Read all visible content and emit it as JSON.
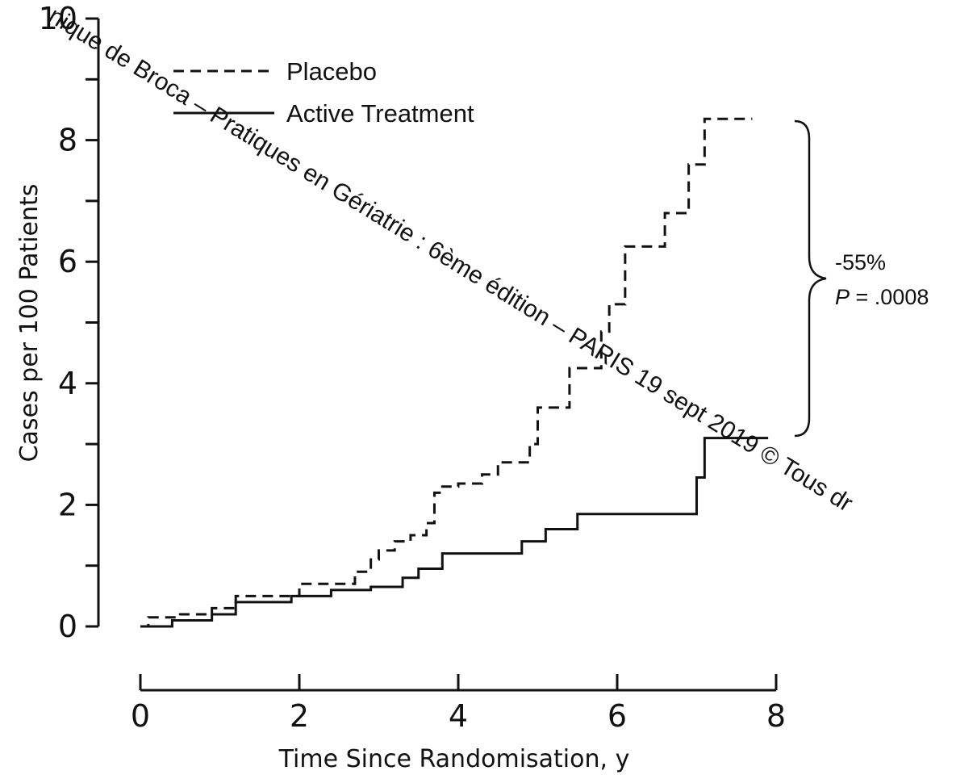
{
  "chart_data": {
    "type": "line",
    "xlabel": "Time Since Randomisation, y",
    "ylabel": "Cases per 100 Patients",
    "xlim": [
      0,
      8
    ],
    "ylim": [
      0,
      10
    ],
    "x_ticks": [
      "0",
      "2",
      "4",
      "6",
      "8"
    ],
    "y_ticks": [
      "0",
      "2",
      "4",
      "6",
      "8",
      "10"
    ],
    "grid": false,
    "legend_position": "top-left",
    "series": [
      {
        "name": "Placebo",
        "style": "dashed",
        "x": [
          0,
          0.1,
          0.5,
          0.9,
          1.2,
          2.0,
          2.7,
          2.9,
          3.0,
          3.2,
          3.4,
          3.6,
          3.7,
          3.8,
          4.0,
          4.3,
          4.5,
          4.9,
          5.0,
          5.4,
          5.5,
          5.8,
          5.9,
          6.1,
          6.6,
          6.9,
          7.1,
          7.7
        ],
        "y": [
          0,
          0.15,
          0.2,
          0.3,
          0.5,
          0.7,
          0.9,
          1.1,
          1.25,
          1.4,
          1.5,
          1.7,
          2.2,
          2.3,
          2.35,
          2.5,
          2.7,
          3.0,
          3.6,
          4.25,
          4.25,
          4.85,
          5.3,
          6.25,
          6.8,
          7.6,
          8.35,
          8.35
        ]
      },
      {
        "name": "Active Treatment",
        "style": "solid",
        "x": [
          0,
          0.4,
          0.9,
          1.2,
          1.9,
          2.4,
          2.9,
          3.3,
          3.5,
          3.8,
          4.5,
          4.8,
          5.1,
          5.5,
          6.6,
          7.0,
          7.1,
          7.9
        ],
        "y": [
          0,
          0.1,
          0.2,
          0.4,
          0.5,
          0.6,
          0.65,
          0.8,
          0.95,
          1.2,
          1.2,
          1.4,
          1.6,
          1.85,
          1.85,
          2.45,
          3.1,
          3.1
        ]
      }
    ],
    "annotations": [
      "-55%",
      "P = .0008"
    ]
  },
  "legend": {
    "placebo_label": "Placebo",
    "active_label": "Active Treatment"
  },
  "annotation": {
    "reduction": "-55%",
    "p_value_prefix": "P",
    "p_value_rest": " = .0008"
  },
  "watermark": {
    "text": "nique de Broca – Pratiques en Gériatrie : 6ème édition – PARIS 19 sept 2019  © Tous dr"
  }
}
